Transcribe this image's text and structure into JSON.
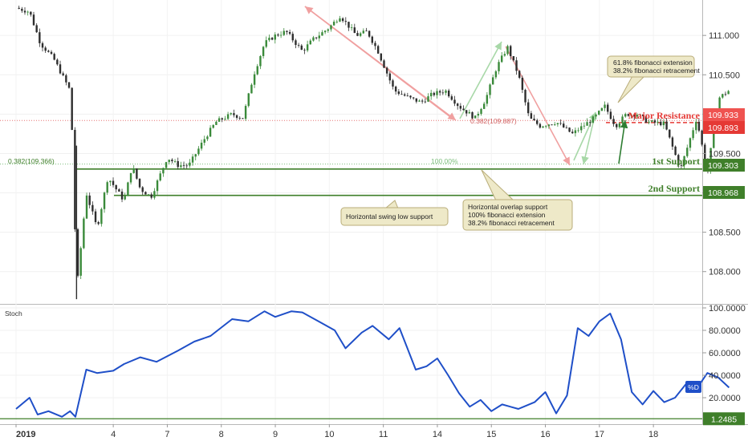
{
  "chart_data": [
    {
      "type": "candlestick",
      "title": "",
      "xlabel": "",
      "ylabel": "",
      "ylim": [
        107.6,
        111.45
      ],
      "x_tick_labels": [
        "2019",
        "4",
        "7",
        "8",
        "9",
        "10",
        "11",
        "14",
        "15",
        "16",
        "17",
        "18"
      ],
      "y_tick_labels": [
        "108.000",
        "108.500",
        "109.000",
        "109.500",
        "110.000",
        "110.500",
        "111.000"
      ],
      "price_path": {
        "x": [
          0,
          0.25,
          0.45,
          0.7,
          1.0,
          1.05,
          1.12,
          1.3,
          1.5,
          1.7,
          2.0,
          2.15,
          2.3,
          2.5,
          2.8,
          3.0,
          3.2,
          3.5,
          3.7,
          4.0,
          4.2,
          4.4,
          4.6,
          4.8,
          5.0,
          5.3,
          5.5,
          5.8,
          6.0,
          6.3,
          6.5,
          6.7,
          7.0,
          7.3,
          7.5,
          7.7,
          7.95,
          8.2,
          8.5,
          8.7,
          8.9,
          9.1,
          9.3,
          9.5,
          9.7,
          10.0,
          10.3,
          10.5,
          10.7,
          10.9,
          11.1,
          11.3,
          11.5,
          11.7,
          12.0,
          12.3,
          12.6,
          12.8,
          13.0,
          13.2
        ],
        "values": [
          111.35,
          111.3,
          110.9,
          110.7,
          110.3,
          109.6,
          107.75,
          109.0,
          108.55,
          109.2,
          108.9,
          109.35,
          109.05,
          108.95,
          109.45,
          109.35,
          109.35,
          109.7,
          109.9,
          110.0,
          109.95,
          110.5,
          110.9,
          111.0,
          111.05,
          110.8,
          110.95,
          111.1,
          111.25,
          111.0,
          111.05,
          110.8,
          110.3,
          110.2,
          110.15,
          110.25,
          110.3,
          110.1,
          109.95,
          110.2,
          110.6,
          110.85,
          110.5,
          109.95,
          109.85,
          109.9,
          109.75,
          109.85,
          109.95,
          110.1,
          109.85,
          110.0,
          110.0,
          109.9,
          109.88,
          109.3,
          109.95,
          109.25,
          110.2,
          110.3
        ]
      },
      "price_labels": [
        {
          "value": 109.933,
          "text": "109.933",
          "color": "#ef5350"
        },
        {
          "value": 109.893,
          "text": "109.893",
          "color": "#e53935"
        },
        {
          "value": 109.303,
          "text": "109.303",
          "color": "#3f7f2a"
        },
        {
          "value": 108.968,
          "text": "108.968",
          "color": "#3f7f2a"
        }
      ],
      "levels": [
        {
          "name": "Major Resistance",
          "value": 109.893,
          "color": "#e53935"
        },
        {
          "name": "1st Support",
          "value": 109.303,
          "color": "#3f7f2a"
        },
        {
          "name": "2nd Support",
          "value": 108.968,
          "color": "#3f7f2a"
        }
      ],
      "annotations": [
        "0.382(109.887)",
        "0.382(109.366)",
        "100.00%",
        "61.8% fibonacci extension",
        "38.2% fibonacci retracement",
        "Horizontal swing low support",
        "Horizontal overlap support",
        "100% fibonacci extension",
        "38.2% fibonacci retracement"
      ]
    },
    {
      "type": "line",
      "title": "Stoch",
      "ylim": [
        0,
        100
      ],
      "y_tick_labels": [
        "20.0000",
        "40.0000",
        "60.0000",
        "80.0000",
        "100.0000"
      ],
      "series": [
        {
          "name": "%D",
          "x": [
            0,
            0.25,
            0.4,
            0.6,
            0.85,
            1.0,
            1.1,
            1.3,
            1.5,
            1.8,
            2.0,
            2.3,
            2.6,
            3.0,
            3.3,
            3.6,
            4.0,
            4.3,
            4.6,
            4.8,
            5.1,
            5.3,
            5.6,
            5.9,
            6.1,
            6.4,
            6.6,
            6.9,
            7.1,
            7.4,
            7.6,
            7.8,
            8.0,
            8.2,
            8.4,
            8.6,
            8.8,
            9.0,
            9.3,
            9.6,
            9.8,
            10.0,
            10.2,
            10.4,
            10.6,
            10.8,
            11.0,
            11.2,
            11.4,
            11.6,
            11.8,
            12.0,
            12.2,
            12.4,
            12.6,
            12.8,
            13.0,
            13.2
          ],
          "values": [
            10,
            20,
            5,
            8,
            3,
            8,
            3,
            45,
            42,
            44,
            50,
            56,
            52,
            62,
            70,
            75,
            90,
            88,
            97,
            92,
            97,
            96,
            88,
            80,
            64,
            78,
            84,
            72,
            82,
            45,
            48,
            55,
            40,
            24,
            12,
            18,
            8,
            14,
            10,
            16,
            25,
            6,
            22,
            82,
            75,
            88,
            95,
            72,
            25,
            14,
            26,
            16,
            20,
            32,
            28,
            42,
            38,
            29
          ]
        }
      ],
      "threshold": {
        "value": 1.2485,
        "text": "1.2485"
      },
      "legend_label": "%D"
    }
  ],
  "colors": {
    "up_candle": "#3a8a3a",
    "down_candle": "#2e2e2e",
    "resistance": "#e53935",
    "support": "#3f7f2a",
    "stoch": "#1f4fc8",
    "note_bg": "#eee9c8",
    "arrow_red": "#f0a0a0",
    "arrow_green": "#a8d8a8"
  }
}
